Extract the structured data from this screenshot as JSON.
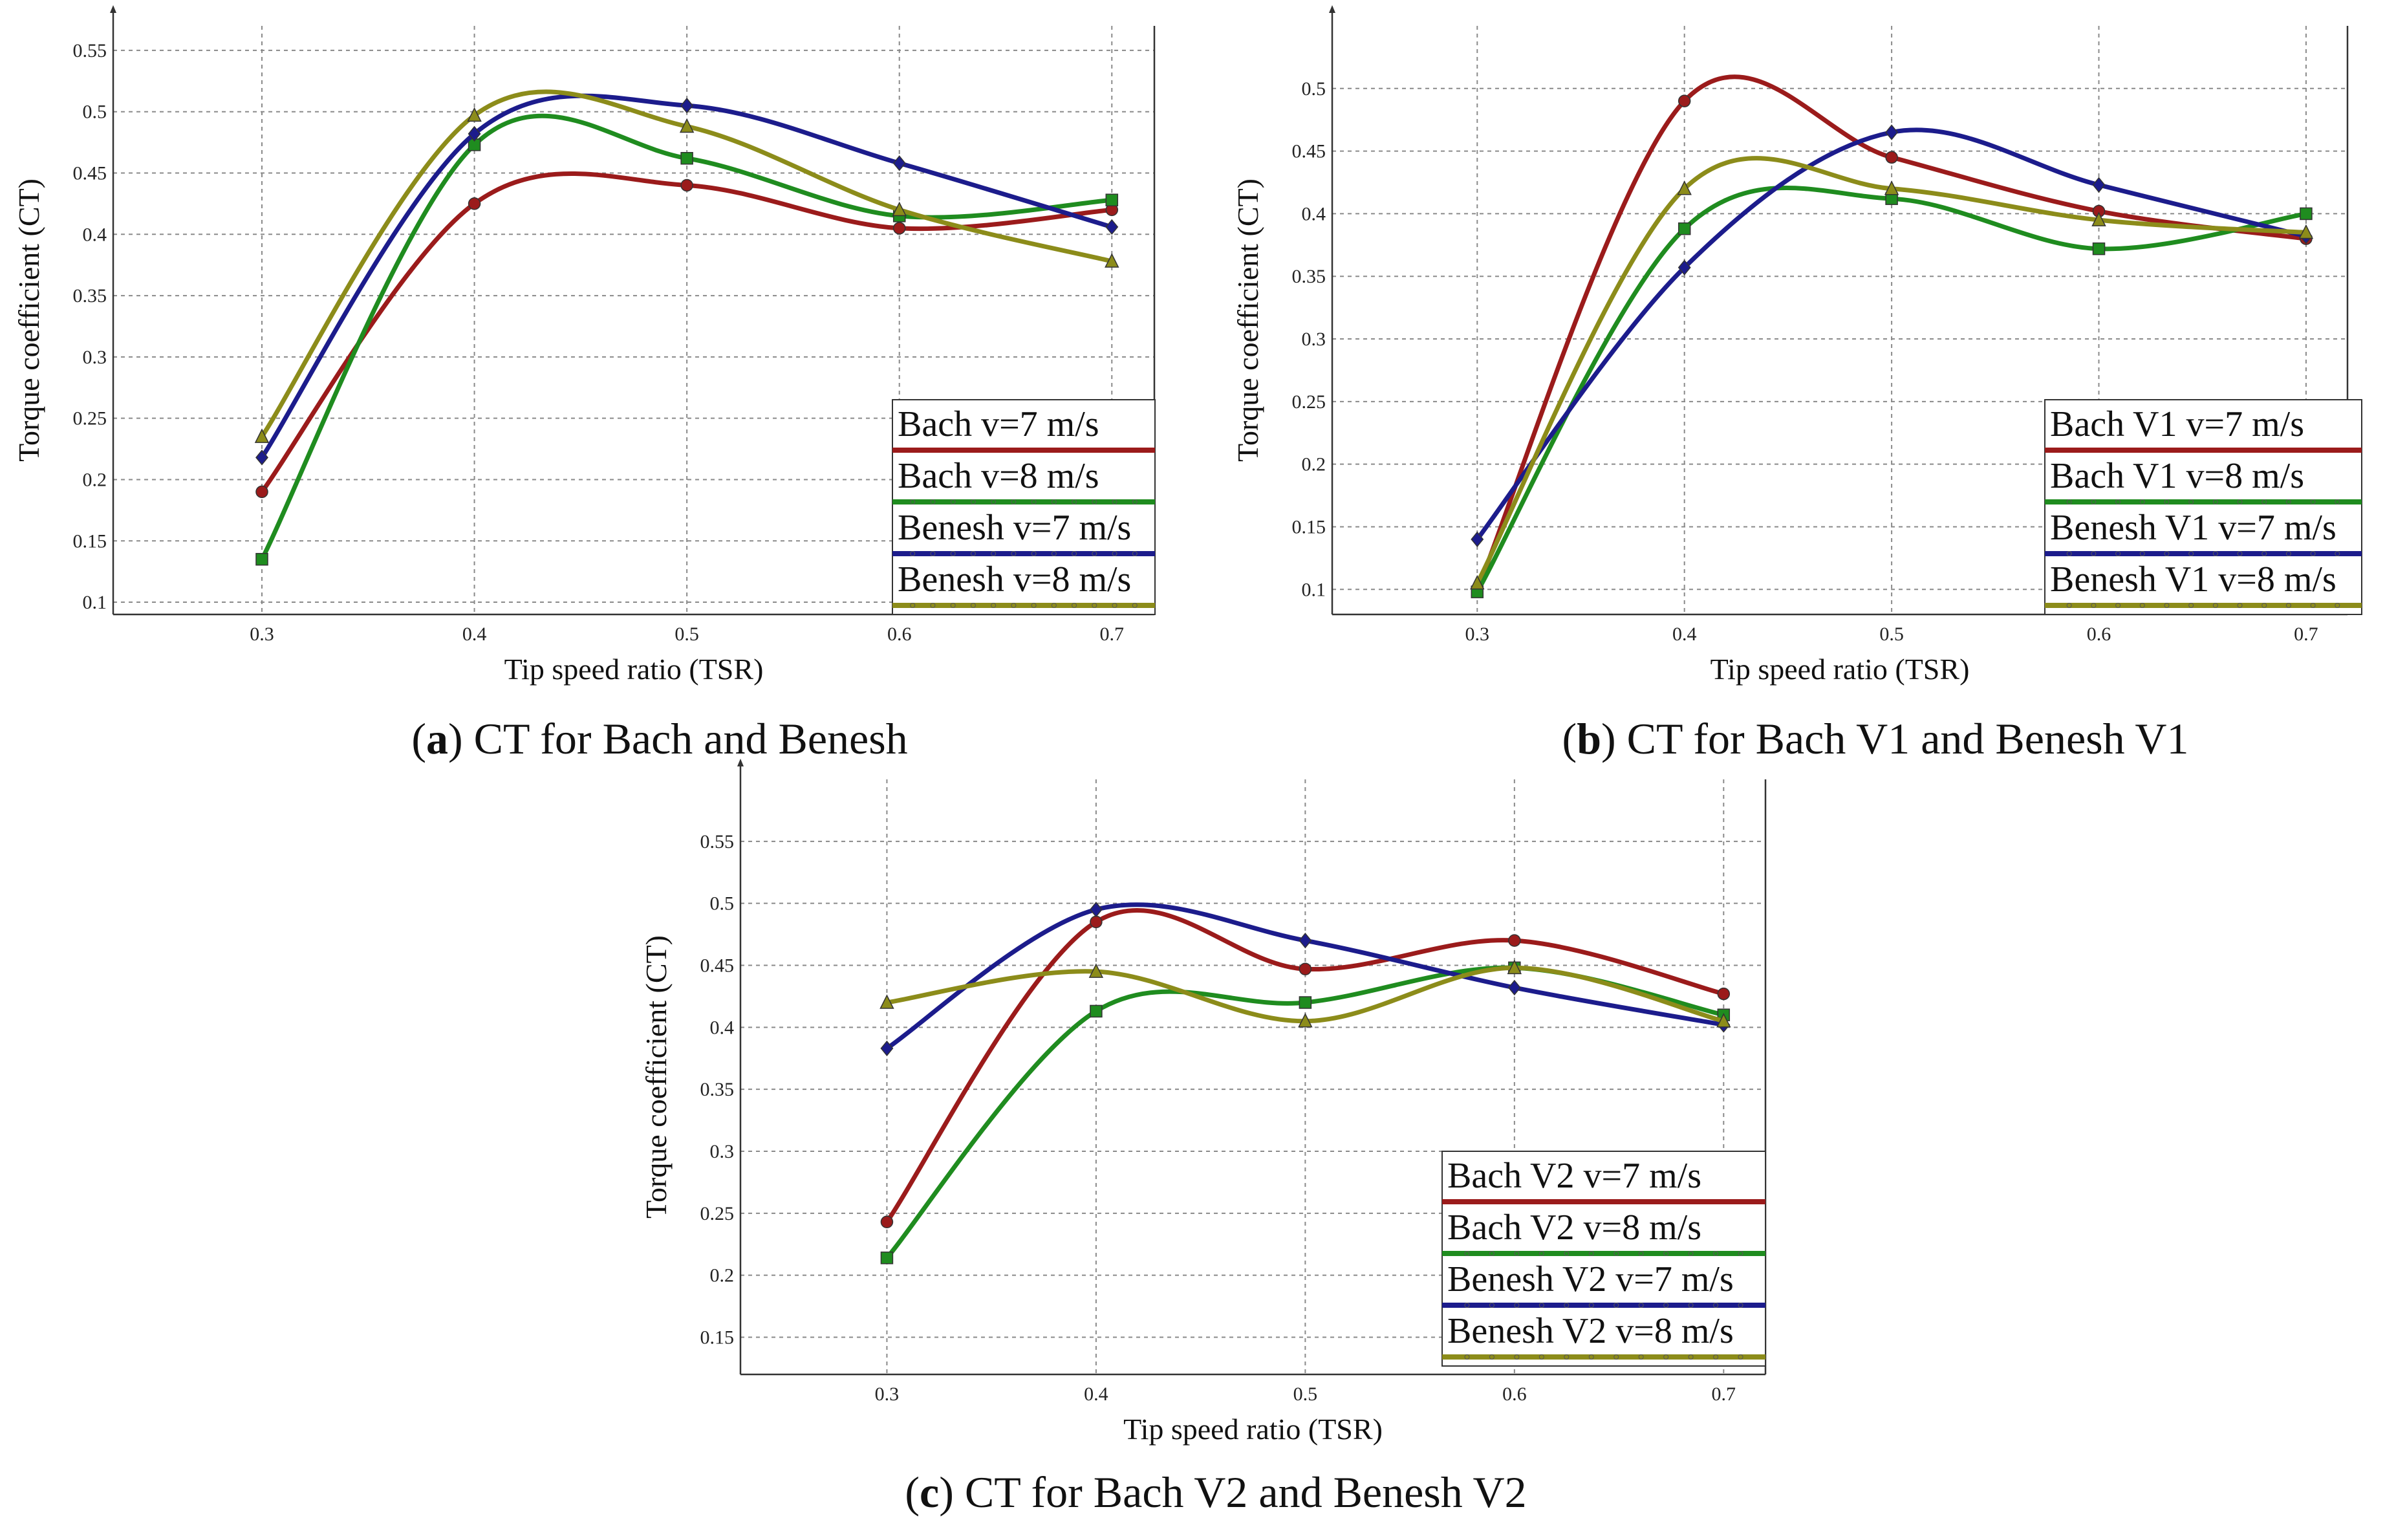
{
  "chart_data": [
    {
      "type": "line",
      "id": "a",
      "caption_letter": "a",
      "caption_text": "CT for Bach and Benesh",
      "xlabel": "Tip speed ratio (TSR)",
      "ylabel": "Torque coefficient (CT)",
      "x": [
        0.3,
        0.4,
        0.5,
        0.6,
        0.7
      ],
      "xticks": [
        "0.3",
        "0.4",
        "0.5",
        "0.6",
        "0.7"
      ],
      "yticks": [
        "0.1",
        "0.15",
        "0.2",
        "0.25",
        "0.3",
        "0.35",
        "0.4",
        "0.45",
        "0.5",
        "0.55"
      ],
      "xlim": [
        0.23,
        0.72
      ],
      "ylim": [
        0.09,
        0.57
      ],
      "grid": true,
      "legend_position": "bottom-right",
      "series": [
        {
          "name": "Bach v=7 m/s",
          "color": "#9b1b1b",
          "marker": "circle",
          "values": [
            0.19,
            0.425,
            0.44,
            0.405,
            0.42
          ]
        },
        {
          "name": "Bach v=8 m/s",
          "color": "#1f8c1f",
          "marker": "square",
          "values": [
            0.135,
            0.473,
            0.462,
            0.415,
            0.428
          ]
        },
        {
          "name": "Benesh v=7 m/s",
          "color": "#1c1c8c",
          "marker": "diamond",
          "values": [
            0.218,
            0.482,
            0.505,
            0.458,
            0.406
          ]
        },
        {
          "name": "Benesh v=8 m/s",
          "color": "#8c8c1a",
          "marker": "triangle",
          "values": [
            0.235,
            0.497,
            0.488,
            0.42,
            0.378
          ]
        }
      ]
    },
    {
      "type": "line",
      "id": "b",
      "caption_letter": "b",
      "caption_text": "CT for Bach V1 and Benesh V1",
      "xlabel": "Tip speed ratio (TSR)",
      "ylabel": "Torque coefficient (CT)",
      "x": [
        0.3,
        0.4,
        0.5,
        0.6,
        0.7
      ],
      "xticks": [
        "0.3",
        "0.4",
        "0.5",
        "0.6",
        "0.7"
      ],
      "yticks": [
        "0.1",
        "0.15",
        "0.2",
        "0.25",
        "0.3",
        "0.35",
        "0.4",
        "0.45",
        "0.5"
      ],
      "xlim": [
        0.23,
        0.72
      ],
      "ylim": [
        0.08,
        0.55
      ],
      "grid": true,
      "legend_position": "bottom-right",
      "series": [
        {
          "name": "Bach V1 v=7 m/s",
          "color": "#9b1b1b",
          "marker": "circle",
          "values": [
            0.1,
            0.49,
            0.445,
            0.402,
            0.38
          ]
        },
        {
          "name": "Bach V1 v=8 m/s",
          "color": "#1f8c1f",
          "marker": "square",
          "values": [
            0.098,
            0.388,
            0.412,
            0.372,
            0.4
          ]
        },
        {
          "name": "Benesh V1 v=7 m/s",
          "color": "#1c1c8c",
          "marker": "diamond",
          "values": [
            0.14,
            0.357,
            0.465,
            0.423,
            0.382
          ]
        },
        {
          "name": "Benesh V1 v=8 m/s",
          "color": "#8c8c1a",
          "marker": "triangle",
          "values": [
            0.105,
            0.42,
            0.42,
            0.395,
            0.385
          ]
        }
      ]
    },
    {
      "type": "line",
      "id": "c",
      "caption_letter": "c",
      "caption_text": "CT for Bach V2 and Benesh V2",
      "xlabel": "Tip speed ratio (TSR)",
      "ylabel": "Torque coefficient (CT)",
      "x": [
        0.3,
        0.4,
        0.5,
        0.6,
        0.7
      ],
      "xticks": [
        "0.3",
        "0.4",
        "0.5",
        "0.6",
        "0.7"
      ],
      "yticks": [
        "0.15",
        "0.2",
        "0.25",
        "0.3",
        "0.35",
        "0.4",
        "0.45",
        "0.5",
        "0.55"
      ],
      "xlim": [
        0.23,
        0.72
      ],
      "ylim": [
        0.12,
        0.6
      ],
      "grid": true,
      "legend_position": "bottom-right",
      "series": [
        {
          "name": "Bach V2 v=7 m/s",
          "color": "#9b1b1b",
          "marker": "circle",
          "values": [
            0.243,
            0.485,
            0.447,
            0.47,
            0.427
          ]
        },
        {
          "name": "Bach V2 v=8 m/s",
          "color": "#1f8c1f",
          "marker": "square",
          "values": [
            0.214,
            0.413,
            0.42,
            0.448,
            0.41
          ]
        },
        {
          "name": "Benesh V2 v=7 m/s",
          "color": "#1c1c8c",
          "marker": "diamond",
          "values": [
            0.383,
            0.495,
            0.47,
            0.432,
            0.402
          ]
        },
        {
          "name": "Benesh V2 v=8 m/s",
          "color": "#8c8c1a",
          "marker": "triangle",
          "values": [
            0.42,
            0.445,
            0.405,
            0.448,
            0.405
          ]
        }
      ]
    }
  ]
}
